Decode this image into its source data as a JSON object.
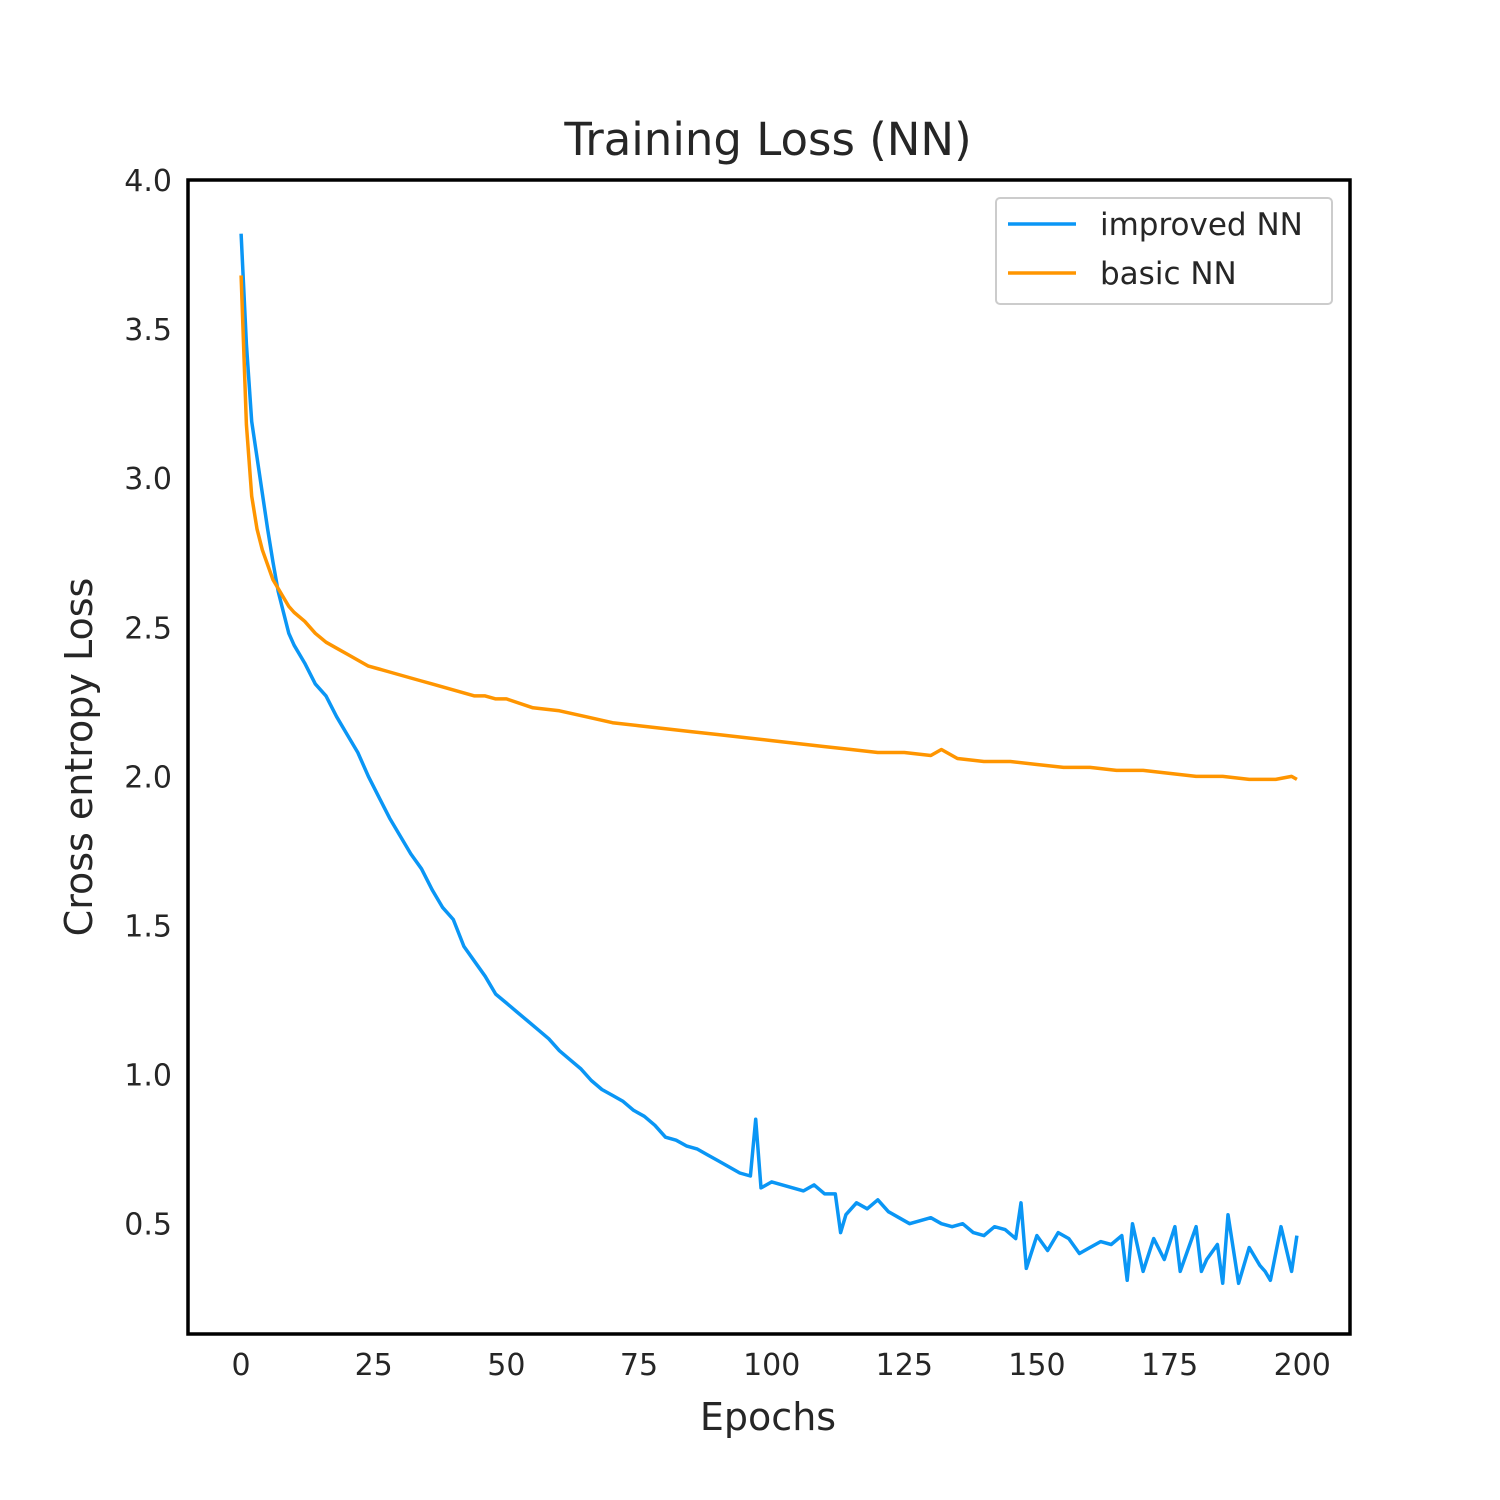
{
  "chart_data": {
    "type": "line",
    "title": "Training Loss (NN)",
    "xlabel": "Epochs",
    "ylabel": "Cross entropy Loss",
    "xlim": [
      -10,
      209
    ],
    "ylim": [
      0.13,
      4.0
    ],
    "xticks": [
      0,
      25,
      50,
      75,
      100,
      125,
      150,
      175,
      200
    ],
    "yticks": [
      0.5,
      1.0,
      1.5,
      2.0,
      2.5,
      3.0,
      3.5,
      4.0
    ],
    "xtick_labels": [
      "0",
      "25",
      "50",
      "75",
      "100",
      "125",
      "150",
      "175",
      "200"
    ],
    "ytick_labels": [
      "0.5",
      "1.0",
      "1.5",
      "2.0",
      "2.5",
      "3.0",
      "3.5",
      "4.0"
    ],
    "grid": false,
    "legend_position": "top-right",
    "series": [
      {
        "name": "improved NN",
        "color": "#0a96f5",
        "x": [
          0,
          1,
          2,
          3,
          4,
          5,
          6,
          7,
          8,
          9,
          10,
          12,
          14,
          16,
          18,
          20,
          22,
          24,
          26,
          28,
          30,
          32,
          34,
          36,
          38,
          40,
          42,
          44,
          46,
          48,
          50,
          52,
          54,
          56,
          58,
          60,
          62,
          64,
          66,
          68,
          70,
          72,
          74,
          76,
          78,
          80,
          82,
          84,
          86,
          88,
          90,
          92,
          94,
          96,
          97,
          98,
          100,
          102,
          104,
          106,
          108,
          110,
          112,
          113,
          114,
          116,
          118,
          120,
          122,
          124,
          126,
          128,
          130,
          132,
          134,
          136,
          138,
          140,
          142,
          144,
          146,
          147,
          148,
          150,
          152,
          154,
          156,
          158,
          160,
          162,
          164,
          166,
          167,
          168,
          170,
          172,
          174,
          176,
          177,
          178,
          180,
          181,
          182,
          184,
          185,
          186,
          188,
          190,
          192,
          193,
          194,
          196,
          198,
          199
        ],
        "y": [
          3.82,
          3.45,
          3.19,
          3.07,
          2.95,
          2.83,
          2.72,
          2.62,
          2.55,
          2.48,
          2.44,
          2.38,
          2.31,
          2.27,
          2.2,
          2.14,
          2.08,
          2.0,
          1.93,
          1.86,
          1.8,
          1.74,
          1.69,
          1.62,
          1.56,
          1.52,
          1.43,
          1.38,
          1.33,
          1.27,
          1.24,
          1.21,
          1.18,
          1.15,
          1.12,
          1.08,
          1.05,
          1.02,
          0.98,
          0.95,
          0.93,
          0.91,
          0.88,
          0.86,
          0.83,
          0.79,
          0.78,
          0.76,
          0.75,
          0.73,
          0.71,
          0.69,
          0.67,
          0.66,
          0.85,
          0.62,
          0.64,
          0.63,
          0.62,
          0.61,
          0.63,
          0.6,
          0.6,
          0.47,
          0.53,
          0.57,
          0.55,
          0.58,
          0.54,
          0.52,
          0.5,
          0.51,
          0.52,
          0.5,
          0.49,
          0.5,
          0.47,
          0.46,
          0.49,
          0.48,
          0.45,
          0.57,
          0.35,
          0.46,
          0.41,
          0.47,
          0.45,
          0.4,
          0.42,
          0.44,
          0.43,
          0.46,
          0.31,
          0.5,
          0.34,
          0.45,
          0.38,
          0.49,
          0.34,
          0.39,
          0.49,
          0.34,
          0.38,
          0.43,
          0.3,
          0.53,
          0.3,
          0.42,
          0.36,
          0.34,
          0.31,
          0.49,
          0.34,
          0.46
        ]
      },
      {
        "name": "basic NN",
        "color": "#ff9500",
        "x": [
          0,
          1,
          2,
          3,
          4,
          5,
          6,
          7,
          8,
          9,
          10,
          12,
          14,
          16,
          18,
          20,
          22,
          24,
          26,
          28,
          30,
          32,
          34,
          36,
          38,
          40,
          42,
          44,
          46,
          48,
          50,
          55,
          60,
          65,
          70,
          75,
          80,
          85,
          90,
          95,
          100,
          105,
          110,
          115,
          120,
          125,
          130,
          132,
          135,
          140,
          145,
          150,
          155,
          160,
          165,
          170,
          175,
          180,
          185,
          190,
          195,
          198,
          199
        ],
        "y": [
          3.68,
          3.18,
          2.94,
          2.83,
          2.76,
          2.71,
          2.66,
          2.63,
          2.6,
          2.57,
          2.55,
          2.52,
          2.48,
          2.45,
          2.43,
          2.41,
          2.39,
          2.37,
          2.36,
          2.35,
          2.34,
          2.33,
          2.32,
          2.31,
          2.3,
          2.29,
          2.28,
          2.27,
          2.27,
          2.26,
          2.26,
          2.23,
          2.22,
          2.2,
          2.18,
          2.17,
          2.16,
          2.15,
          2.14,
          2.13,
          2.12,
          2.11,
          2.1,
          2.09,
          2.08,
          2.08,
          2.07,
          2.09,
          2.06,
          2.05,
          2.05,
          2.04,
          2.03,
          2.03,
          2.02,
          2.02,
          2.01,
          2.0,
          2.0,
          1.99,
          1.99,
          2.0,
          1.99
        ]
      }
    ]
  }
}
